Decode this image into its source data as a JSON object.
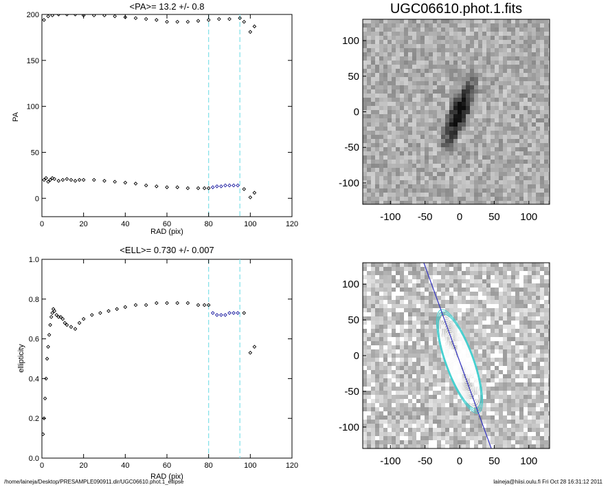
{
  "footer": {
    "path": "/home/laineja/Desktop/PRESAMPLE090911.dir/UGC06610.phot.1_ellipse",
    "stamp": "laineja@hiisi.oulu.fi  Fri Oct 28 16:31:12 2011"
  },
  "colors": {
    "cut_line": "#7fe0e8",
    "fit_points": "#1a1aa0",
    "contour": "#ffffff",
    "outer_contour": "#40d0d0",
    "major_axis": "#3030c0"
  },
  "chart_data": [
    {
      "type": "scatter",
      "title": "<PA>=  13.2 +/-   0.8",
      "xlabel": "RAD (pix)",
      "ylabel": "PA",
      "xlim": [
        0,
        120
      ],
      "ylim": [
        -20,
        200
      ],
      "xticks": [
        "0",
        "20",
        "40",
        "60",
        "80",
        "100",
        "120"
      ],
      "yticks": [
        "0",
        "50",
        "100",
        "150",
        "200"
      ],
      "vlines": [
        80,
        95
      ],
      "series": [
        {
          "x": [
            1,
            2,
            3,
            4,
            5,
            6,
            8,
            10,
            12,
            14,
            16,
            18,
            20,
            25,
            30,
            35,
            40,
            45,
            50,
            55,
            60,
            65,
            70,
            75,
            78,
            80
          ],
          "y": [
            20,
            22,
            18,
            20,
            22,
            21,
            19,
            20,
            21,
            20,
            19,
            20,
            20,
            20,
            19,
            18,
            17,
            16,
            14,
            13,
            12,
            12,
            11,
            11,
            11,
            11
          ]
        },
        {
          "x": [
            82,
            84,
            86,
            88,
            90,
            92,
            94
          ],
          "y": [
            12,
            13,
            13,
            14,
            14,
            14,
            14
          ]
        },
        {
          "x": [
            97,
            100,
            102
          ],
          "y": [
            10,
            1,
            6
          ]
        },
        {
          "x": [
            1,
            3,
            5,
            8,
            12,
            16,
            20,
            25,
            30,
            35,
            40,
            45,
            50,
            55,
            60,
            65,
            70,
            75,
            80,
            85,
            90,
            95
          ],
          "y": [
            194,
            198,
            199,
            200,
            200,
            200,
            199,
            199,
            199,
            198,
            197,
            196,
            195,
            194,
            192,
            192,
            192,
            193,
            194,
            195,
            195,
            196
          ]
        },
        {
          "x": [
            97,
            100,
            102
          ],
          "y": [
            192,
            181,
            187
          ]
        }
      ]
    },
    {
      "type": "scatter",
      "title": "<ELL>= 0.730 +/-  0.007",
      "xlabel": "RAD (pix)",
      "ylabel": "ellipticity",
      "xlim": [
        0,
        120
      ],
      "ylim": [
        0.0,
        1.0
      ],
      "xticks": [
        "0",
        "20",
        "40",
        "60",
        "80",
        "100",
        "120"
      ],
      "yticks": [
        "0.0",
        "0.2",
        "0.4",
        "0.6",
        "0.8",
        "1.0"
      ],
      "vlines": [
        80,
        95
      ],
      "series": [
        {
          "x": [
            0.5,
            1,
            1.5,
            2,
            2.5,
            3,
            3.5,
            4,
            4.5,
            5,
            5.5,
            6,
            7,
            8,
            9,
            10,
            11,
            12,
            14,
            16,
            18,
            20,
            24,
            28,
            32,
            36,
            40,
            45,
            50,
            55,
            60,
            65,
            70,
            75,
            78,
            80
          ],
          "y": [
            0.12,
            0.2,
            0.3,
            0.4,
            0.5,
            0.56,
            0.62,
            0.67,
            0.71,
            0.73,
            0.75,
            0.74,
            0.72,
            0.71,
            0.71,
            0.7,
            0.68,
            0.67,
            0.66,
            0.65,
            0.68,
            0.7,
            0.72,
            0.73,
            0.74,
            0.75,
            0.76,
            0.77,
            0.77,
            0.78,
            0.78,
            0.78,
            0.78,
            0.77,
            0.77,
            0.77
          ]
        },
        {
          "x": [
            82,
            84,
            86,
            88,
            90,
            92,
            94
          ],
          "y": [
            0.73,
            0.72,
            0.72,
            0.72,
            0.73,
            0.73,
            0.73
          ]
        },
        {
          "x": [
            97,
            100,
            102
          ],
          "y": [
            0.73,
            0.53,
            0.56
          ]
        }
      ]
    },
    {
      "type": "heatmap",
      "title": "UGC06610.phot.1.fits",
      "xlim": [
        -140,
        130
      ],
      "ylim": [
        -130,
        130
      ],
      "xticks": [
        "-100",
        "-50",
        "0",
        "50",
        "100"
      ],
      "yticks": [
        "-100",
        "-50",
        "0",
        "50",
        "100"
      ]
    },
    {
      "type": "heatmap",
      "title": "",
      "xlim": [
        -140,
        130
      ],
      "ylim": [
        -130,
        130
      ],
      "xticks": [
        "-100",
        "-50",
        "0",
        "50",
        "100"
      ],
      "yticks": [
        "-100",
        "-50",
        "0",
        "50",
        "100"
      ]
    }
  ]
}
